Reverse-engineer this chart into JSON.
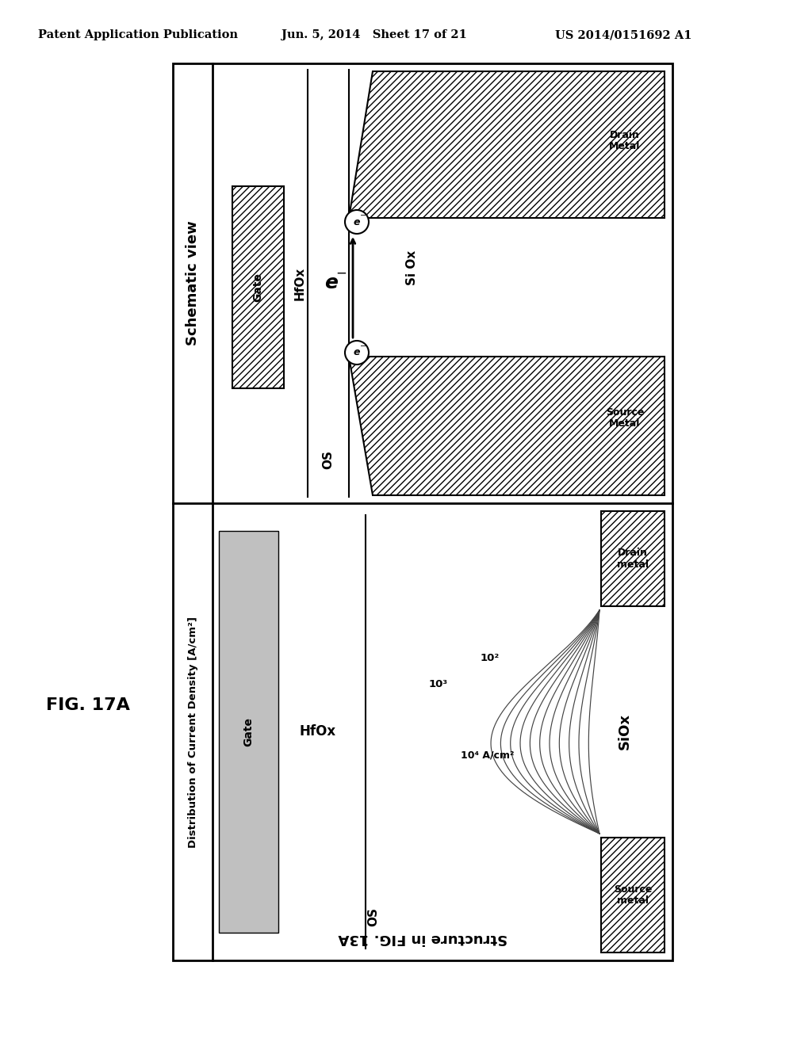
{
  "bg_color": "#ffffff",
  "header_text": "Patent Application Publication",
  "header_date": "Jun. 5, 2014   Sheet 17 of 21",
  "header_patent": "US 2014/0151692 A1",
  "fig_label": "FIG. 17A",
  "bottom_label": "Structure in FIG. 13A",
  "top_panel_title": "Schematic view",
  "bottom_panel_title": "Distribution of Current Density [A/cm²]",
  "top_labels": {
    "gate": "Gate",
    "hfox": "HfOx",
    "os": "OS",
    "siox": "Si Ox",
    "drain": "Drain\nMetal",
    "source": "Source\nMetal"
  },
  "bottom_labels": {
    "gate": "Gate",
    "hfox": "HfOx",
    "os": "OS",
    "siox": "SiOx",
    "drain": "Drain\nmetal",
    "source": "Source\nmetal",
    "c1": "10²",
    "c2": "10³",
    "c3": "10⁴ A/cm²"
  }
}
